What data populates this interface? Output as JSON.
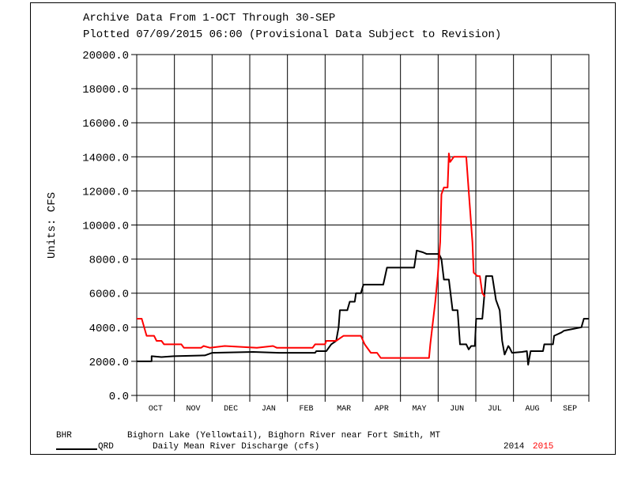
{
  "chart_data": {
    "type": "line",
    "title_lines": [
      "Archive Data From  1-OCT Through 30-SEP",
      "Plotted 07/09/2015  06:00 (Provisional Data Subject to Revision)"
    ],
    "ylabel": "Units: CFS",
    "ylim": [
      0,
      20000
    ],
    "yticks": [
      "0.0",
      "2000.0",
      "4000.0",
      "6000.0",
      "8000.0",
      "10000.0",
      "12000.0",
      "14000.0",
      "16000.0",
      "18000.0",
      "20000.0"
    ],
    "ytick_values": [
      0,
      2000,
      4000,
      6000,
      8000,
      10000,
      12000,
      14000,
      16000,
      18000,
      20000
    ],
    "x_unit": "day of water year",
    "xlim": [
      0,
      365
    ],
    "months": [
      "OCT",
      "NOV",
      "DEC",
      "JAN",
      "FEB",
      "MAR",
      "APR",
      "MAY",
      "JUN",
      "JUL",
      "AUG",
      "SEP"
    ],
    "grid": true,
    "series": [
      {
        "name": "2014",
        "color": "#000000",
        "points": [
          [
            0,
            2000
          ],
          [
            12,
            2000
          ],
          [
            12,
            2300
          ],
          [
            20,
            2250
          ],
          [
            30,
            2300
          ],
          [
            55,
            2350
          ],
          [
            61,
            2500
          ],
          [
            94,
            2550
          ],
          [
            115,
            2500
          ],
          [
            144,
            2500
          ],
          [
            145,
            2600
          ],
          [
            153,
            2600
          ],
          [
            157,
            3000
          ],
          [
            161,
            3200
          ],
          [
            163,
            4000
          ],
          [
            164,
            5000
          ],
          [
            170,
            5000
          ],
          [
            172,
            5500
          ],
          [
            176,
            5500
          ],
          [
            177,
            6000
          ],
          [
            181,
            6000
          ],
          [
            183,
            6500
          ],
          [
            199,
            6500
          ],
          [
            202,
            7500
          ],
          [
            224,
            7500
          ],
          [
            226,
            8500
          ],
          [
            231,
            8400
          ],
          [
            234,
            8300
          ],
          [
            244,
            8300
          ],
          [
            246,
            8000
          ],
          [
            248,
            6800
          ],
          [
            252,
            6800
          ],
          [
            255,
            5000
          ],
          [
            259,
            5000
          ],
          [
            261,
            3000
          ],
          [
            266,
            3000
          ],
          [
            268,
            2700
          ],
          [
            270,
            2900
          ],
          [
            273,
            2900
          ],
          [
            274,
            4500
          ],
          [
            279,
            4500
          ],
          [
            282,
            7000
          ],
          [
            287,
            7000
          ],
          [
            290,
            5600
          ],
          [
            293,
            5000
          ],
          [
            295,
            3200
          ],
          [
            297,
            2400
          ],
          [
            300,
            2900
          ],
          [
            301,
            2800
          ],
          [
            303,
            2500
          ],
          [
            311,
            2550
          ],
          [
            315,
            2600
          ],
          [
            316,
            1800
          ],
          [
            318,
            2600
          ],
          [
            328,
            2600
          ],
          [
            329,
            3000
          ],
          [
            336,
            3000
          ],
          [
            337,
            3500
          ],
          [
            343,
            3700
          ],
          [
            345,
            3800
          ],
          [
            352,
            3900
          ],
          [
            359,
            4000
          ],
          [
            361,
            4500
          ],
          [
            365,
            4500
          ]
        ]
      },
      {
        "name": "2015",
        "color": "#ff0000",
        "points": [
          [
            0,
            4500
          ],
          [
            4,
            4500
          ],
          [
            8,
            3500
          ],
          [
            14,
            3500
          ],
          [
            16,
            3200
          ],
          [
            20,
            3200
          ],
          [
            22,
            3000
          ],
          [
            36,
            3000
          ],
          [
            38,
            2800
          ],
          [
            52,
            2800
          ],
          [
            54,
            2900
          ],
          [
            59,
            2800
          ],
          [
            71,
            2900
          ],
          [
            97,
            2800
          ],
          [
            110,
            2900
          ],
          [
            113,
            2800
          ],
          [
            142,
            2800
          ],
          [
            144,
            3000
          ],
          [
            152,
            3000
          ],
          [
            153,
            3200
          ],
          [
            161,
            3200
          ],
          [
            167,
            3500
          ],
          [
            181,
            3500
          ],
          [
            184,
            3000
          ],
          [
            189,
            2500
          ],
          [
            194,
            2500
          ],
          [
            197,
            2200
          ],
          [
            236,
            2200
          ],
          [
            237,
            3000
          ],
          [
            241,
            5500
          ],
          [
            243,
            7000
          ],
          [
            245,
            9000
          ],
          [
            246,
            11800
          ],
          [
            248,
            12200
          ],
          [
            251,
            12200
          ],
          [
            252,
            14200
          ],
          [
            253,
            13700
          ],
          [
            256,
            14000
          ],
          [
            266,
            14000
          ],
          [
            268,
            12000
          ],
          [
            271,
            9000
          ],
          [
            272,
            7200
          ],
          [
            275,
            7000
          ],
          [
            277,
            7000
          ],
          [
            279,
            6000
          ],
          [
            281,
            5800
          ]
        ]
      }
    ]
  },
  "legend": {
    "station_code": "BHR",
    "station_name": "Bighorn Lake (Yellowtail), Bighorn River near Fort Smith, MT",
    "param_code": "QRD",
    "param_name": "Daily Mean River Discharge (cfs)",
    "year1": "2014",
    "year2": "2015"
  }
}
